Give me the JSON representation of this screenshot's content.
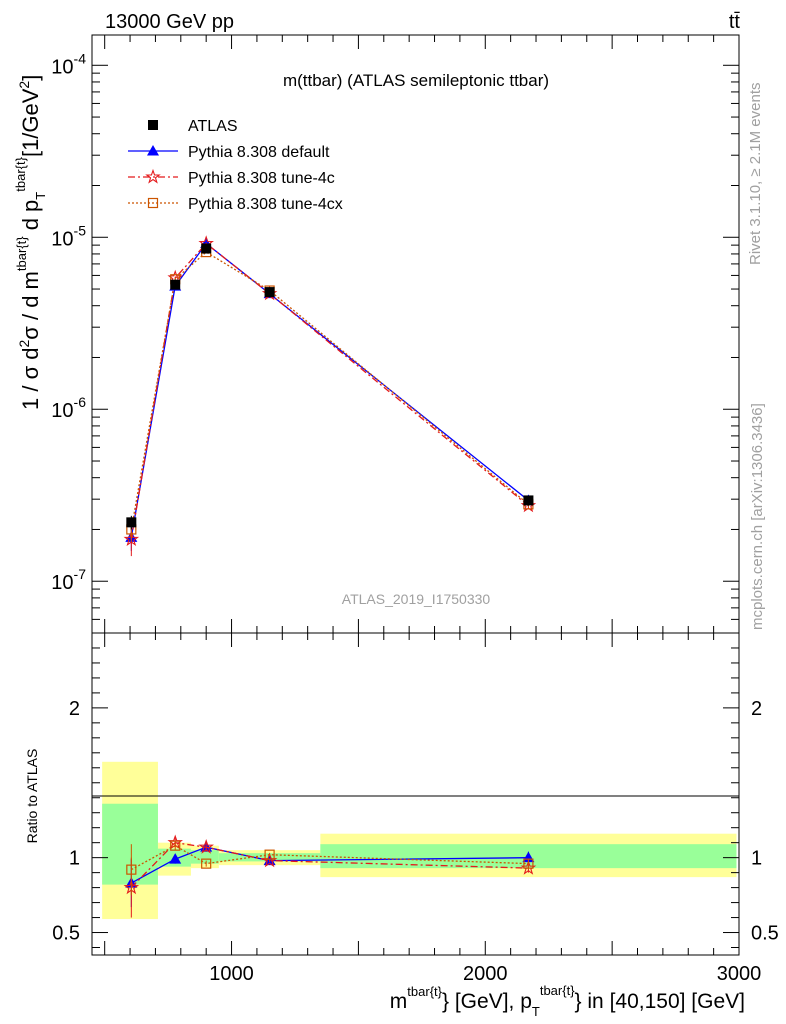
{
  "header": {
    "energy_label": "13000 GeV pp",
    "process_label": "tt̄"
  },
  "side_labels": {
    "rivet": "Rivet 3.1.10, ≥ 2.1M events",
    "source": "mcplots.cern.ch [arXiv:1306.3436]"
  },
  "chart_data": [
    {
      "type": "line",
      "panel": "main",
      "title": "m(ttbar) (ATLAS semileptonic ttbar)",
      "watermark": "ATLAS_2019_I1750330",
      "ylabel": "1 / σ d²σ / d m^tbar{t} d p_T^tbar{t} [1/GeV²]",
      "xlabel": "m^tbar{t} [GeV], p_T^tbar{t} in [40,150] [GeV]",
      "xlim": [
        450,
        3000
      ],
      "ylim": [
        5e-08,
        0.00015
      ],
      "yscale": "log",
      "y_tick_labels": [
        "10^-7",
        "10^-6",
        "10^-5",
        "10^-4"
      ],
      "legend_position": "top-left",
      "x": [
        605,
        778,
        900,
        1150,
        2170
      ],
      "series": [
        {
          "name": "ATLAS",
          "color": "#000000",
          "marker": "square-filled",
          "values": [
            2.2e-07,
            5.3e-06,
            8.6e-06,
            4.8e-06,
            2.95e-07
          ],
          "err_low": [
            2e-08,
            3e-07,
            4e-07,
            2e-07,
            2e-08
          ],
          "err_high": [
            2e-08,
            3e-07,
            4e-07,
            2e-07,
            2e-08
          ]
        },
        {
          "name": "Pythia 8.308 default",
          "color": "#0000ff",
          "marker": "triangle",
          "dash": "",
          "values": [
            1.8e-07,
            5.2e-06,
            9.2e-06,
            4.7e-06,
            2.95e-07
          ],
          "err_low": [
            3e-08,
            1e-07,
            1e-07,
            5e-08,
            1e-08
          ],
          "err_high": [
            3e-08,
            1e-07,
            1e-07,
            5e-08,
            1e-08
          ]
        },
        {
          "name": "Pythia 8.308 tune-4c",
          "color": "#e41a1c",
          "marker": "star",
          "dash": "7,3,2,3",
          "values": [
            1.75e-07,
            5.8e-06,
            9.2e-06,
            4.7e-06,
            2.75e-07
          ],
          "err_low": [
            3.5e-08,
            1e-07,
            1e-07,
            5e-08,
            1e-08
          ],
          "err_high": [
            3.5e-08,
            1e-07,
            1e-07,
            5e-08,
            1e-08
          ]
        },
        {
          "name": "Pythia 8.308 tune-4cx",
          "color": "#cc5500",
          "marker": "square-open",
          "dash": "2,2",
          "values": [
            2e-07,
            5.7e-06,
            8.2e-06,
            4.9e-06,
            2.8e-07
          ],
          "err_low": [
            3e-08,
            1e-07,
            1e-07,
            5e-08,
            1e-08
          ],
          "err_high": [
            3e-08,
            1e-07,
            1e-07,
            5e-08,
            1e-08
          ]
        }
      ]
    },
    {
      "type": "line",
      "panel": "ratio",
      "ylabel": "Ratio to ATLAS",
      "xlabel": "m^tbar{t} [GeV], p_T^tbar{t} in [40,150] [GeV]",
      "xlim": [
        450,
        3000
      ],
      "ylim": [
        0.35,
        2.5
      ],
      "x_ticks": [
        1000,
        2000,
        3000
      ],
      "x_tick_labels": [
        "1000",
        "2000",
        "3000"
      ],
      "y_ticks": [
        0.5,
        1,
        2
      ],
      "y_tick_labels": [
        "0.5",
        "1",
        "2"
      ],
      "bands": [
        {
          "x0": 490,
          "x1": 710,
          "yellow": [
            0.59,
            1.64
          ],
          "green": [
            0.82,
            1.36
          ]
        },
        {
          "x0": 710,
          "x1": 840,
          "yellow": [
            0.88,
            1.1
          ],
          "green": [
            0.94,
            1.06
          ]
        },
        {
          "x0": 840,
          "x1": 950,
          "yellow": [
            0.93,
            1.08
          ],
          "green": [
            0.96,
            1.05
          ]
        },
        {
          "x0": 950,
          "x1": 1350,
          "yellow": [
            0.95,
            1.05
          ],
          "green": [
            0.975,
            1.03
          ]
        },
        {
          "x0": 1350,
          "x1": 2990,
          "yellow": [
            0.87,
            1.16
          ],
          "green": [
            0.93,
            1.09
          ]
        }
      ],
      "band_colors": {
        "yellow": "#ffff99",
        "green": "#99ff99"
      },
      "x": [
        605,
        778,
        900,
        1150,
        2170
      ],
      "series": [
        {
          "name": "Pythia 8.308 default",
          "color": "#0000ff",
          "marker": "triangle",
          "dash": "",
          "values": [
            0.83,
            0.99,
            1.07,
            0.98,
            1.0
          ],
          "err_low": [
            0.16,
            0.03,
            0.03,
            0.01,
            0.04
          ],
          "err_high": [
            0.16,
            0.03,
            0.03,
            0.01,
            0.04
          ]
        },
        {
          "name": "Pythia 8.308 tune-4c",
          "color": "#e41a1c",
          "marker": "star",
          "dash": "7,3,2,3",
          "values": [
            0.8,
            1.1,
            1.07,
            0.98,
            0.93
          ],
          "err_low": [
            0.2,
            0.03,
            0.03,
            0.01,
            0.03
          ],
          "err_high": [
            0.2,
            0.03,
            0.03,
            0.01,
            0.03
          ]
        },
        {
          "name": "Pythia 8.308 tune-4cx",
          "color": "#cc5500",
          "marker": "square-open",
          "dash": "2,2",
          "values": [
            0.92,
            1.08,
            0.96,
            1.02,
            0.96
          ],
          "err_low": [
            0.17,
            0.03,
            0.02,
            0.01,
            0.03
          ],
          "err_high": [
            0.17,
            0.03,
            0.02,
            0.01,
            0.03
          ]
        }
      ]
    }
  ]
}
